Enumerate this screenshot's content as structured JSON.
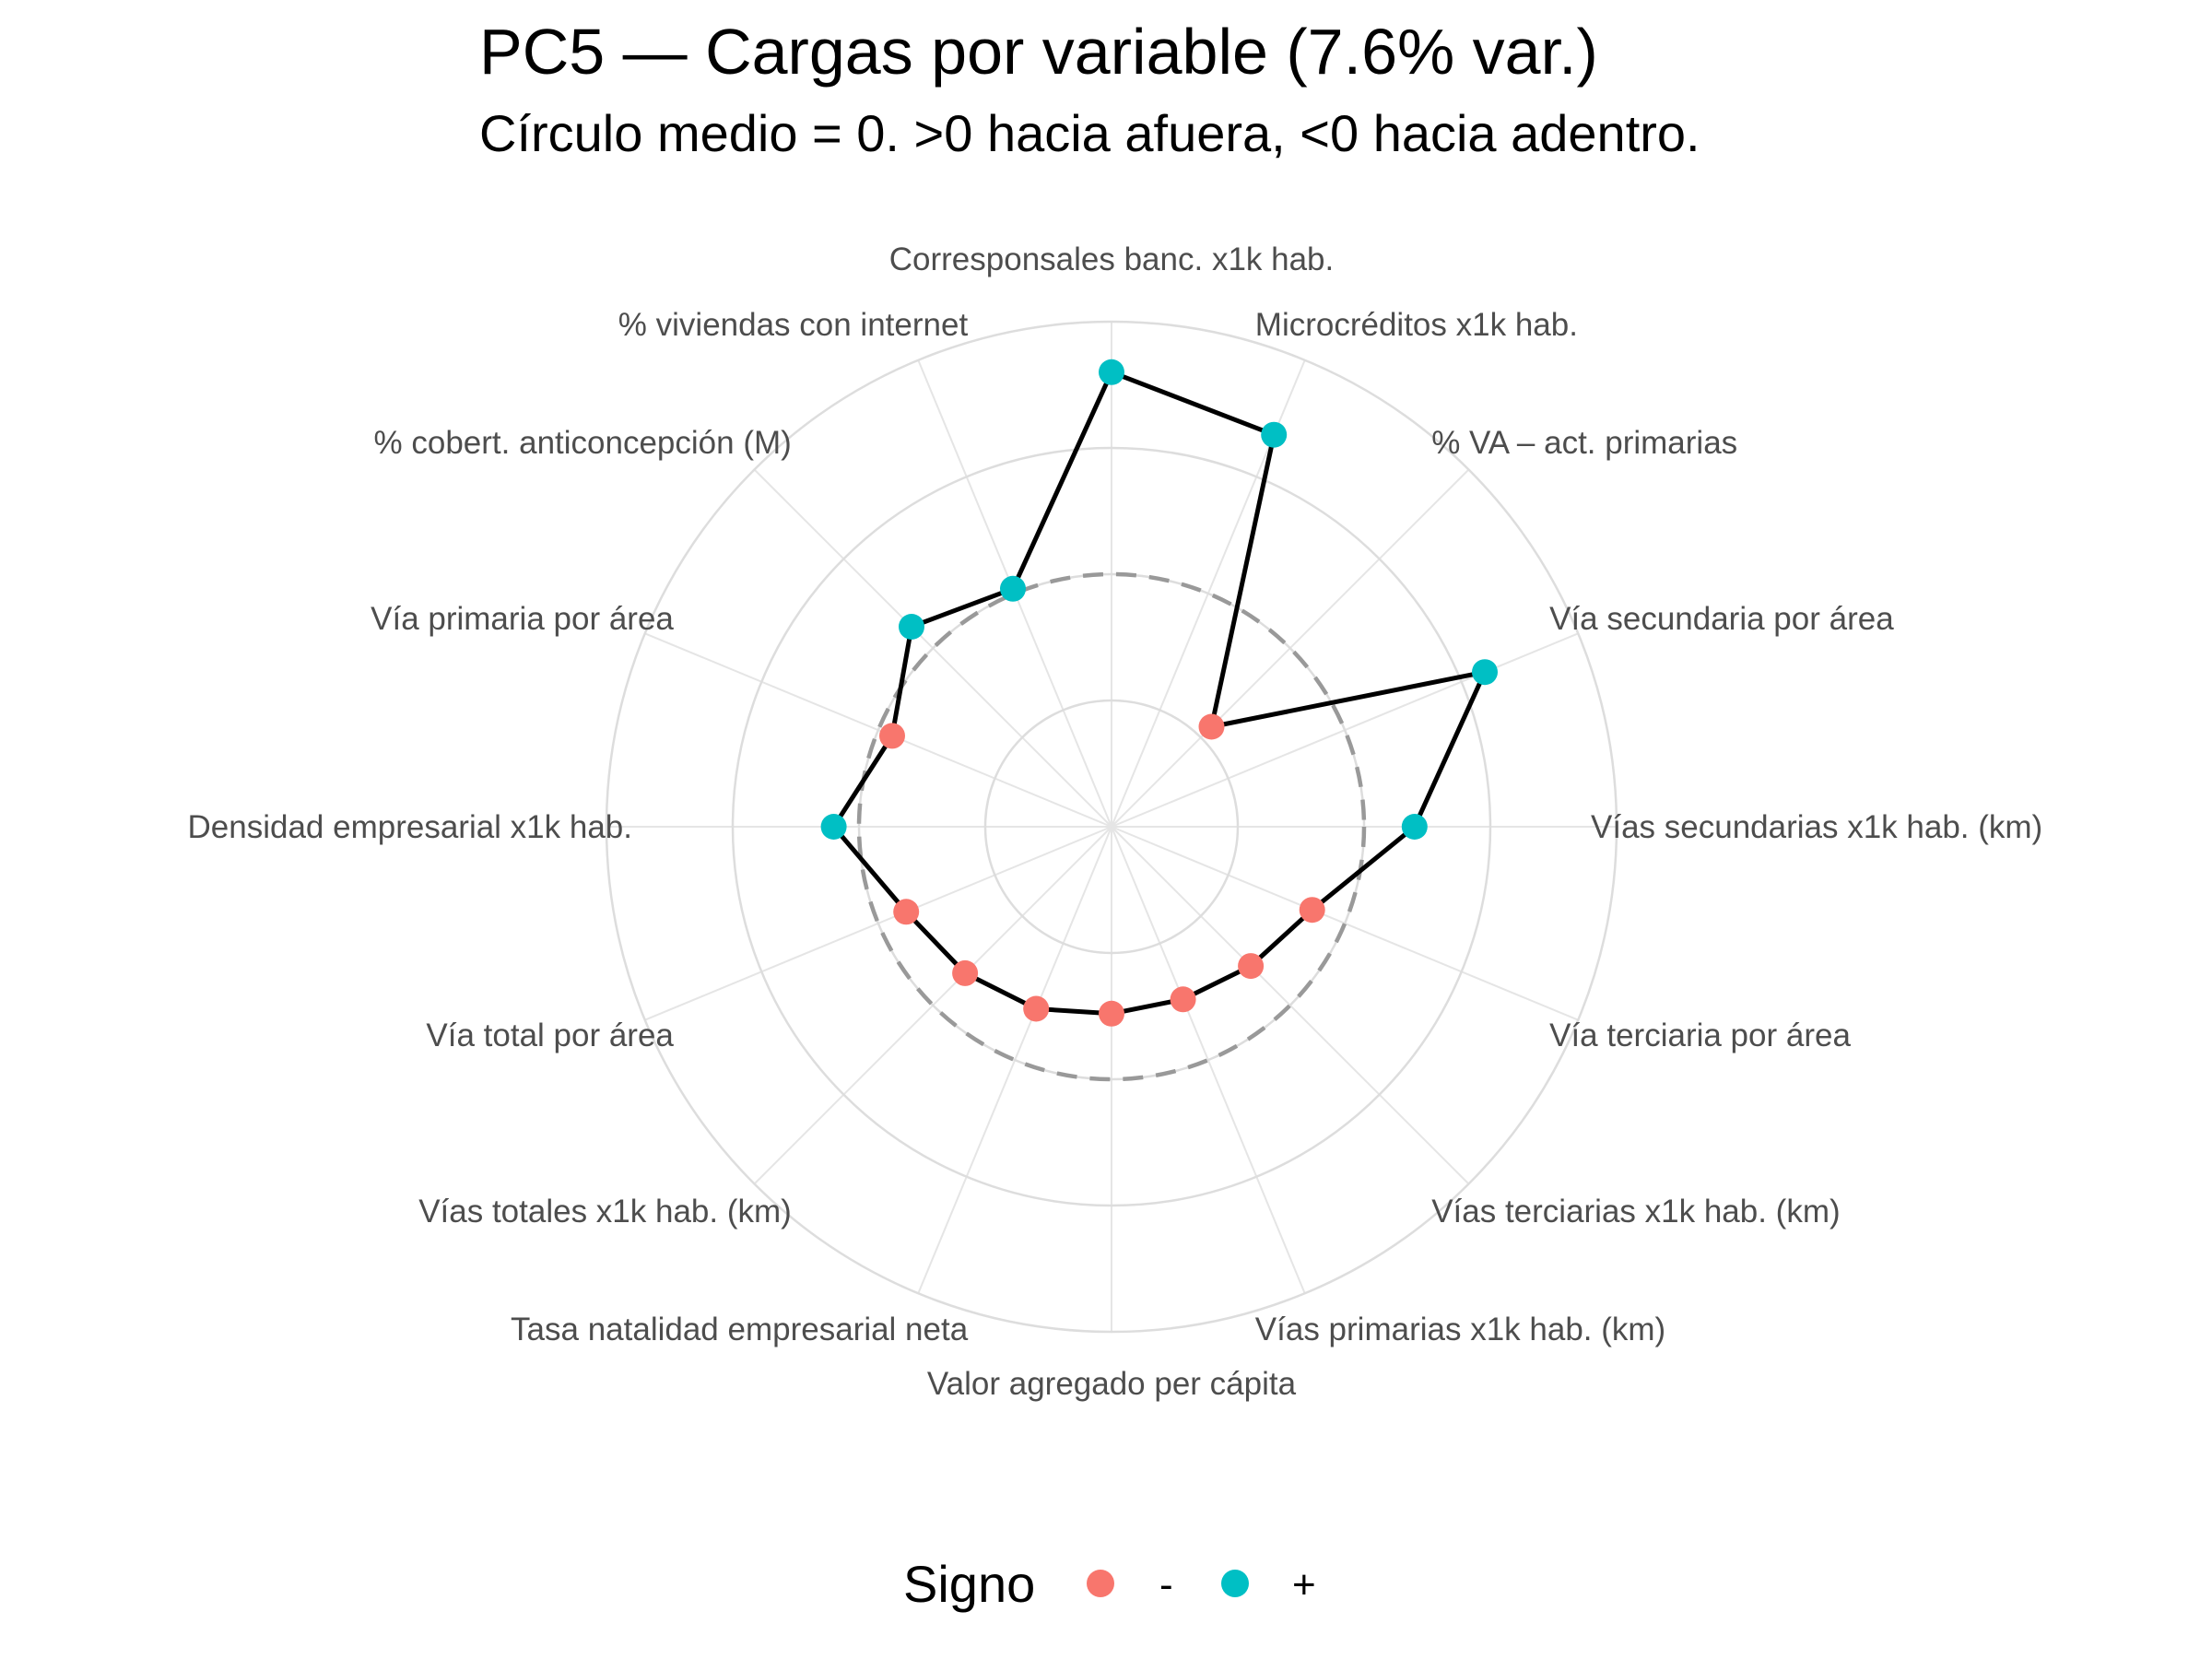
{
  "chart_data": {
    "type": "radar",
    "title": "PC5 — Cargas por variable (7.6% var.)",
    "subtitle": "Círculo medio = 0. >0 hacia afuera, <0 hacia adentro.",
    "axes": [
      "Corresponsales banc. x1k hab.",
      "Microcréditos x1k hab.",
      "% VA – act. primarias",
      "Vía secundaria por área",
      "Vías secundarias x1k hab. (km)",
      "Vía terciaria por área",
      "Vías terciarias x1k hab. (km)",
      "Vías primarias x1k hab. (km)",
      "Valor agregado per cápita",
      "Tasa natalidad empresarial neta",
      "Vías totales x1k hab. (km)",
      "Vía total por área",
      "Densidad empresarial x1k hab.",
      "Vía primaria por área",
      "% cobert. anticoncepción (M)",
      "% viviendas con internet"
    ],
    "values": [
      0.4,
      0.34,
      -0.22,
      0.3,
      0.1,
      -0.07,
      -0.11,
      -0.13,
      -0.13,
      -0.11,
      -0.09,
      -0.06,
      0.05,
      -0.03,
      0.06,
      0.01
    ],
    "signs": [
      "+",
      "+",
      "-",
      "+",
      "+",
      "-",
      "-",
      "-",
      "-",
      "-",
      "-",
      "-",
      "+",
      "-",
      "+",
      "+"
    ],
    "radial_range": [
      -0.5,
      0.5
    ],
    "radial_grid": [
      -0.25,
      0,
      0.25,
      0.5
    ],
    "zero_circle": 0,
    "grid": true,
    "legend": {
      "title": "Signo",
      "position": "bottom",
      "items": [
        {
          "label": "-",
          "color": "#F8766D"
        },
        {
          "label": "+",
          "color": "#00BFC4"
        }
      ]
    },
    "colors": {
      "negative": "#F8766D",
      "positive": "#00BFC4",
      "line": "#000000",
      "zero_circle": "#999999",
      "grid": "#e5e5e5"
    }
  }
}
